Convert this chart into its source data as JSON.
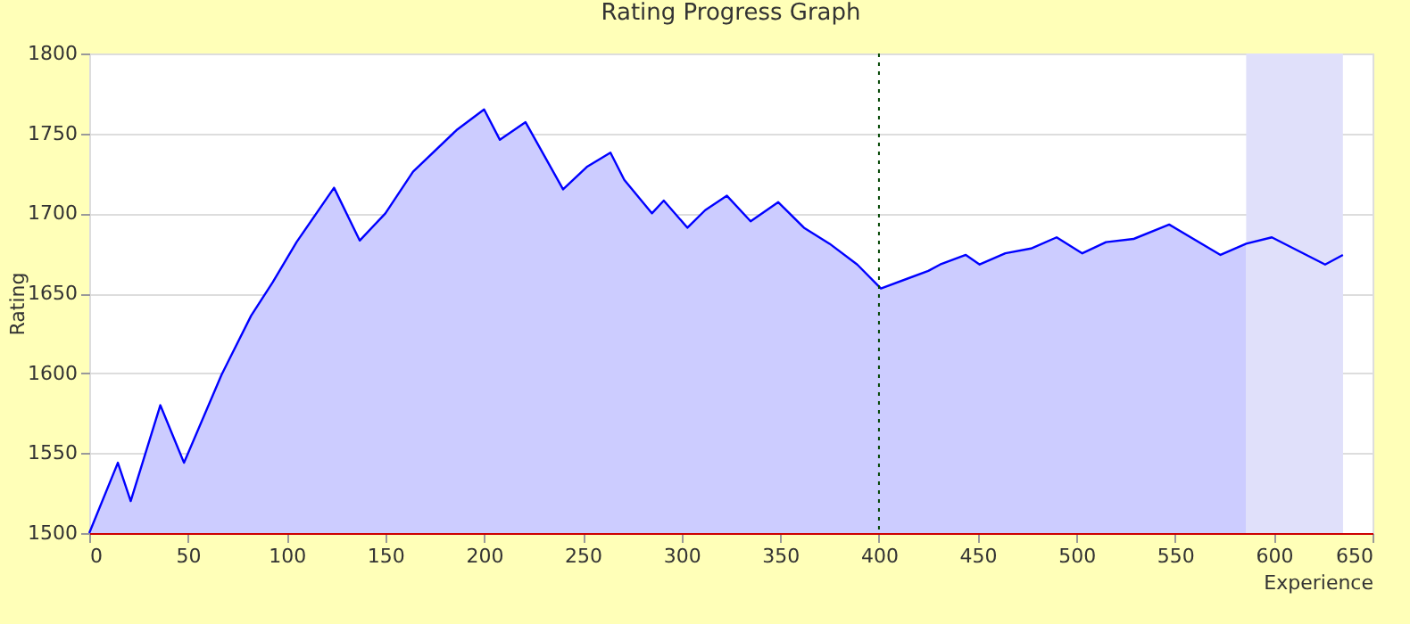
{
  "chart_data": {
    "type": "area",
    "title": "Rating Progress Graph",
    "xlabel": "Experience",
    "ylabel": "Rating",
    "x": [
      0,
      14.5,
      21,
      36,
      48,
      67,
      82,
      93,
      105,
      124,
      137,
      150,
      164,
      186,
      200,
      208,
      221,
      240,
      252,
      264,
      271,
      285,
      291,
      303,
      312,
      323,
      335,
      349,
      362,
      375,
      389,
      401,
      425,
      431,
      444,
      451,
      464,
      477,
      490,
      503,
      515,
      529,
      547,
      573,
      586,
      599,
      626,
      635
    ],
    "series": [
      {
        "color": "#0000ff",
        "values": [
          1500,
          1544,
          1520,
          1580,
          1544,
          1599,
          1636,
          1657,
          1682,
          1716,
          1683,
          1700,
          1726,
          1752,
          1765,
          1746,
          1757,
          1715,
          1729,
          1738,
          1721,
          1700,
          1708,
          1691,
          1702,
          1711,
          1695,
          1707,
          1691,
          1681,
          1668,
          1653,
          1664,
          1668,
          1674,
          1668,
          1675,
          1678,
          1685,
          1675,
          1682,
          1684,
          1693,
          1674,
          1681,
          1685,
          1668,
          1674
        ]
      }
    ],
    "xlim": [
      0,
      650
    ],
    "xticks": [
      0,
      50,
      100,
      150,
      200,
      250,
      300,
      350,
      400,
      450,
      500,
      550,
      600,
      650
    ],
    "ylim": [
      1500,
      1800
    ],
    "yticks": [
      1500,
      1550,
      1600,
      1650,
      1700,
      1750,
      1800
    ],
    "grid": "y",
    "ref_lines": [
      {
        "axis": "x",
        "value": 400,
        "color": "#004400",
        "line_style": "dotted"
      }
    ],
    "bands": [
      {
        "axis": "x",
        "from": 586,
        "to": 635,
        "color": "#e0e0fa"
      }
    ]
  }
}
